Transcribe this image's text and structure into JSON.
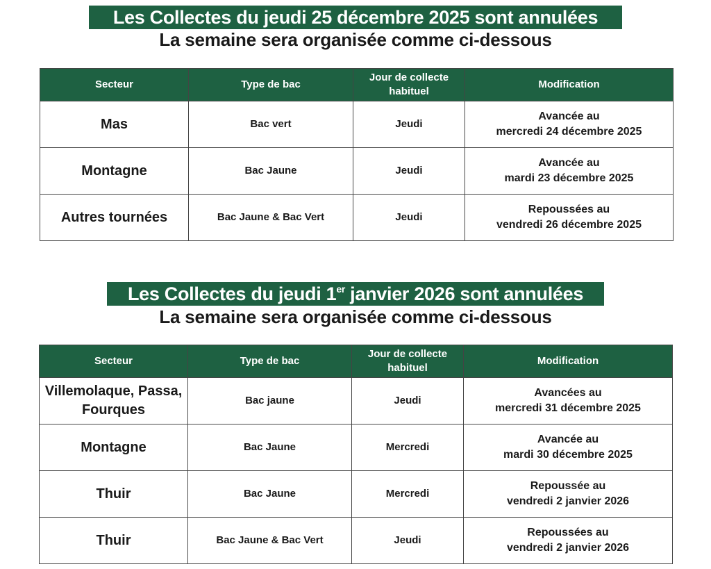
{
  "notice1": {
    "title": "Les Collectes du jeudi 25 décembre 2025 sont annulées",
    "subtitle": "La semaine sera organisée comme ci-dessous",
    "headers": [
      "Secteur",
      "Type de bac",
      "Jour de collecte habituel",
      "Modification"
    ],
    "rows": [
      {
        "secteur": "Mas",
        "bac": "Bac vert",
        "jour": "Jeudi",
        "mod1": "Avancée au",
        "mod2": "mercredi 24 décembre 2025"
      },
      {
        "secteur": "Montagne",
        "bac": "Bac Jaune",
        "jour": "Jeudi",
        "mod1": "Avancée au",
        "mod2": "mardi 23 décembre 2025"
      },
      {
        "secteur": "Autres tournées",
        "bac": "Bac Jaune & Bac Vert",
        "jour": "Jeudi",
        "mod1": "Repoussées au",
        "mod2": "vendredi 26 décembre 2025"
      }
    ]
  },
  "notice2": {
    "title_a": "Les Collectes du jeudi 1",
    "title_sup": "er",
    "title_b": " janvier 2026 sont annulées",
    "subtitle": "La semaine sera organisée comme ci-dessous",
    "headers": [
      "Secteur",
      "Type de bac",
      "Jour de collecte habituel",
      "Modification"
    ],
    "rows": [
      {
        "secteur": "Villemolaque, Passa, Fourques",
        "bac": "Bac jaune",
        "jour": "Jeudi",
        "mod1": "Avancées au",
        "mod2": "mercredi 31 décembre 2025"
      },
      {
        "secteur": "Montagne",
        "bac": "Bac Jaune",
        "jour": "Mercredi",
        "mod1": "Avancée au",
        "mod2": "mardi 30 décembre 2025"
      },
      {
        "secteur": "Thuir",
        "bac": "Bac Jaune",
        "jour": "Mercredi",
        "mod1": "Repoussée au",
        "mod2": "vendredi 2 janvier 2026"
      },
      {
        "secteur": "Thuir",
        "bac": "Bac Jaune & Bac Vert",
        "jour": "Jeudi",
        "mod1": "Repoussées au",
        "mod2": "vendredi 2 janvier 2026"
      }
    ]
  },
  "colors": {
    "header_green": "#1e6142"
  }
}
